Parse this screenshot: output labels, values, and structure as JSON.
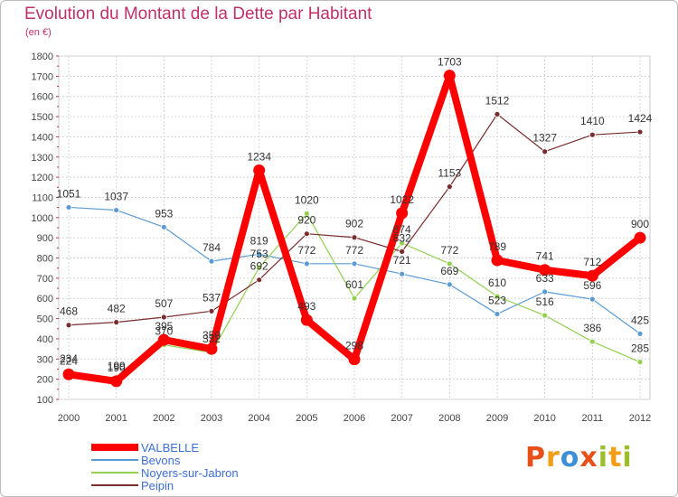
{
  "chart_data": {
    "type": "line",
    "title": "Evolution du Montant de la Dette par Habitant",
    "subtitle": "(en €)",
    "x": [
      "2000",
      "2001",
      "2002",
      "2003",
      "2004",
      "2005",
      "2006",
      "2007",
      "2008",
      "2009",
      "2010",
      "2011",
      "2012"
    ],
    "ylim": [
      100,
      1800
    ],
    "yticks": [
      100,
      200,
      300,
      400,
      500,
      600,
      700,
      800,
      900,
      1000,
      1100,
      1200,
      1300,
      1400,
      1500,
      1600,
      1700,
      1800
    ],
    "grid": true,
    "legend_position": "bottom-left",
    "series": [
      {
        "name": "VALBELLE",
        "color": "#ff0000",
        "values": [
          224,
          190,
          395,
          350,
          1234,
          493,
          298,
          1022,
          1703,
          789,
          741,
          712,
          900
        ]
      },
      {
        "name": "Bevons",
        "color": "#5b9bd5",
        "values": [
          1051,
          1037,
          953,
          784,
          819,
          772,
          772,
          721,
          669,
          523,
          633,
          596,
          425
        ]
      },
      {
        "name": "Noyers-sur-Jabron",
        "color": "#92d050",
        "values": [
          234,
          199,
          370,
          332,
          753,
          1020,
          601,
          874,
          772,
          610,
          516,
          386,
          285
        ]
      },
      {
        "name": "Peipin",
        "color": "#7b2c2c",
        "values": [
          468,
          482,
          507,
          537,
          692,
          920,
          902,
          832,
          1153,
          1512,
          1327,
          1410,
          1424
        ]
      }
    ]
  },
  "logo": {
    "letters": [
      "P",
      "r",
      "o",
      "x",
      "i",
      "t",
      "i"
    ],
    "colors": [
      "#e8501a",
      "#f29d13",
      "#3d8fd6",
      "#e8501a",
      "#9bbf2b",
      "#f29d13",
      "#9bbf2b"
    ]
  }
}
